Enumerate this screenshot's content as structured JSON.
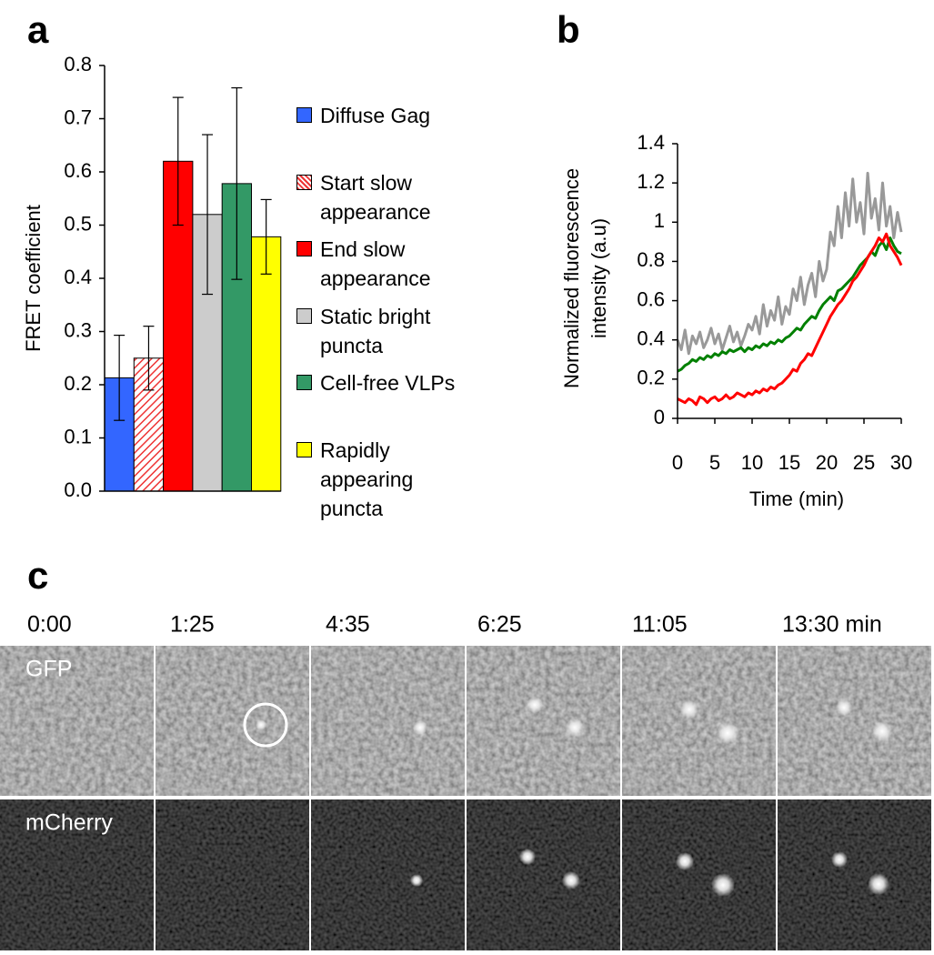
{
  "chart_data": [
    {
      "type": "bar",
      "panel": "a",
      "y_label": "FRET coefficient",
      "categories": [
        null
      ],
      "ylim": [
        0,
        0.8
      ],
      "yticks": [
        {
          "value": 0,
          "label": "0.0"
        },
        0.1,
        0.2,
        0.3,
        0.4,
        0.5,
        0.6,
        0.7,
        0.8
      ],
      "series": [
        {
          "name": "Diffuse Gag",
          "color": "#3366ff",
          "hatch": false,
          "values": [
            0.213
          ],
          "errors": [
            0.08
          ]
        },
        {
          "name": "Start slow appearance",
          "color": "#ee3333",
          "hatch": true,
          "values": [
            0.25
          ],
          "errors": [
            0.06
          ]
        },
        {
          "name": "End slow appearance",
          "color": "#ff0000",
          "hatch": false,
          "values": [
            0.62
          ],
          "errors": [
            0.12
          ]
        },
        {
          "name": "Static bright puncta",
          "color": "#cccccc",
          "hatch": false,
          "values": [
            0.52
          ],
          "errors": [
            0.15
          ]
        },
        {
          "name": "Cell-free VLPs",
          "color": "#339966",
          "hatch": false,
          "values": [
            0.578
          ],
          "errors": [
            0.18
          ]
        },
        {
          "name": "Rapidly appearing puncta",
          "color": "#ffff00",
          "hatch": false,
          "values": [
            0.478
          ],
          "errors": [
            0.07
          ]
        }
      ]
    },
    {
      "type": "line",
      "panel": "b",
      "y_label": [
        "Normalized fluorescence",
        "intensity (a.u)"
      ],
      "x_label": "Time (min)",
      "xlim": [
        0,
        30
      ],
      "xticks": [
        0,
        5,
        10,
        15,
        20,
        25,
        30
      ],
      "ylim": [
        0,
        1.4
      ],
      "yticks": [
        0,
        0.2,
        0.4,
        0.6,
        0.8,
        1,
        1.2,
        1.4
      ],
      "x": [
        0,
        0.5,
        1,
        1.5,
        2,
        2.5,
        3,
        3.5,
        4,
        4.5,
        5,
        5.5,
        6,
        6.5,
        7,
        7.5,
        8,
        8.5,
        9,
        9.5,
        10,
        10.5,
        11,
        11.5,
        12,
        12.5,
        13,
        13.5,
        14,
        14.5,
        15,
        15.5,
        16,
        16.5,
        17,
        17.5,
        18,
        18.5,
        19,
        19.5,
        20,
        20.5,
        21,
        21.5,
        22,
        22.5,
        23,
        23.5,
        24,
        24.5,
        25,
        25.5,
        26,
        26.5,
        27,
        27.5,
        28,
        28.5,
        29,
        29.5,
        30
      ],
      "series": [
        {
          "color": "#999999",
          "values": [
            0.4,
            0.35,
            0.45,
            0.33,
            0.42,
            0.38,
            0.44,
            0.36,
            0.4,
            0.46,
            0.38,
            0.43,
            0.35,
            0.41,
            0.47,
            0.39,
            0.44,
            0.37,
            0.42,
            0.48,
            0.45,
            0.52,
            0.43,
            0.58,
            0.47,
            0.55,
            0.5,
            0.62,
            0.48,
            0.57,
            0.53,
            0.66,
            0.6,
            0.72,
            0.58,
            0.68,
            0.74,
            0.62,
            0.8,
            0.7,
            0.76,
            0.95,
            0.88,
            1.08,
            0.92,
            1.15,
            0.98,
            1.22,
            1.0,
            1.1,
            0.94,
            1.25,
            1.02,
            1.12,
            0.96,
            1.2,
            0.98,
            1.08,
            0.92,
            1.05,
            0.95
          ]
        },
        {
          "color": "#008000",
          "values": [
            0.24,
            0.25,
            0.27,
            0.28,
            0.3,
            0.29,
            0.31,
            0.3,
            0.32,
            0.31,
            0.33,
            0.32,
            0.34,
            0.33,
            0.35,
            0.34,
            0.35,
            0.36,
            0.34,
            0.36,
            0.35,
            0.37,
            0.36,
            0.38,
            0.37,
            0.39,
            0.38,
            0.4,
            0.39,
            0.41,
            0.42,
            0.44,
            0.46,
            0.45,
            0.48,
            0.5,
            0.52,
            0.51,
            0.55,
            0.58,
            0.6,
            0.62,
            0.6,
            0.65,
            0.66,
            0.68,
            0.7,
            0.72,
            0.75,
            0.78,
            0.8,
            0.82,
            0.85,
            0.83,
            0.88,
            0.9,
            0.86,
            0.92,
            0.88,
            0.85,
            0.84
          ]
        },
        {
          "color": "#ff0000",
          "values": [
            0.1,
            0.09,
            0.08,
            0.1,
            0.09,
            0.07,
            0.11,
            0.1,
            0.08,
            0.1,
            0.11,
            0.09,
            0.1,
            0.12,
            0.1,
            0.11,
            0.13,
            0.12,
            0.11,
            0.13,
            0.12,
            0.14,
            0.13,
            0.15,
            0.14,
            0.16,
            0.15,
            0.17,
            0.18,
            0.2,
            0.22,
            0.25,
            0.24,
            0.28,
            0.3,
            0.33,
            0.32,
            0.36,
            0.4,
            0.44,
            0.48,
            0.52,
            0.55,
            0.58,
            0.6,
            0.63,
            0.66,
            0.7,
            0.72,
            0.75,
            0.78,
            0.82,
            0.85,
            0.88,
            0.92,
            0.9,
            0.94,
            0.88,
            0.85,
            0.82,
            0.78
          ]
        }
      ]
    }
  ],
  "panel_c": {
    "panel": "c",
    "times": [
      "0:00",
      "1:25",
      "4:35",
      "6:25",
      "11:05",
      "13:30 min"
    ],
    "channels": [
      "GFP",
      "mCherry"
    ]
  }
}
